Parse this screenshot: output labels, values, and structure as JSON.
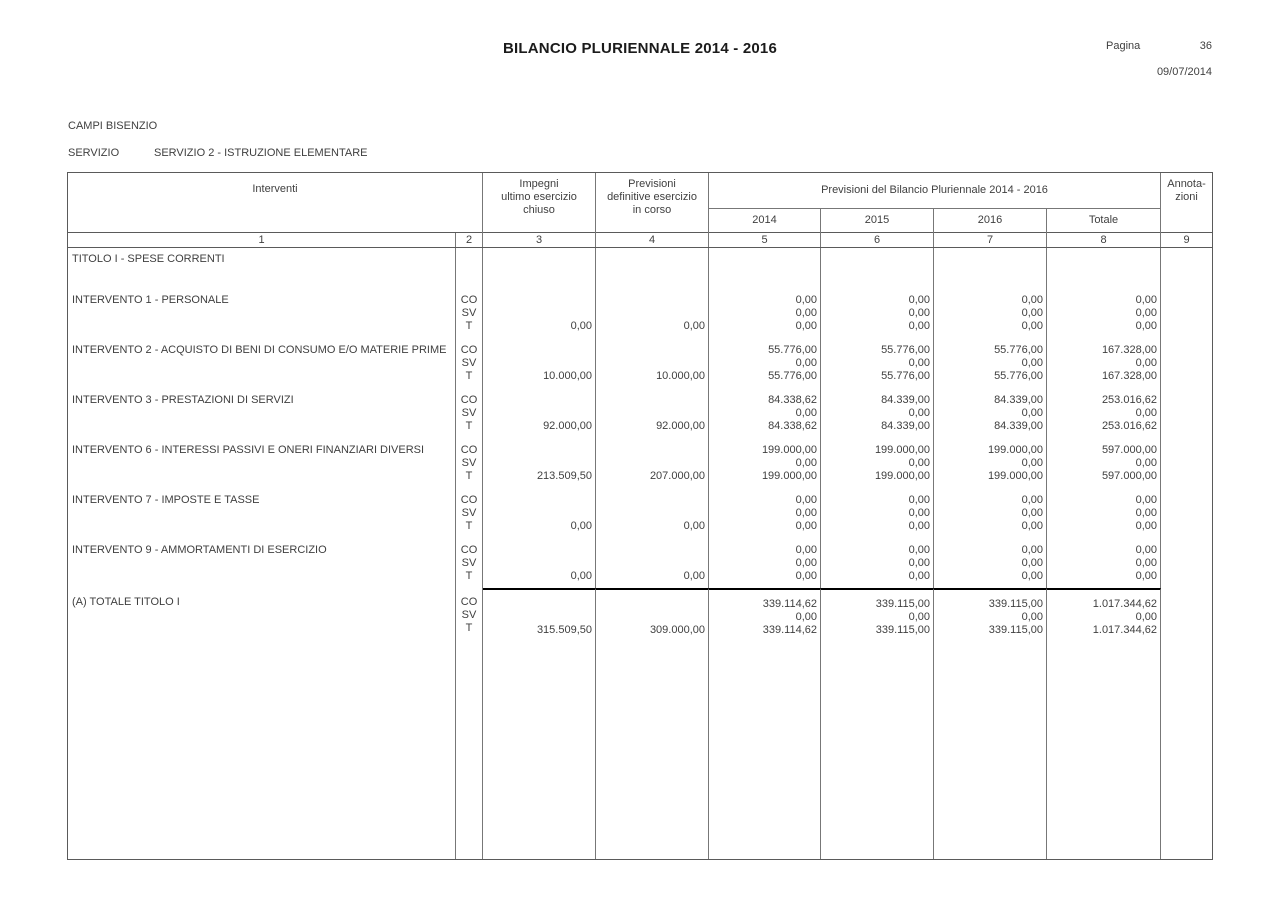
{
  "header": {
    "title": "BILANCIO PLURIENNALE 2014 - 2016",
    "pagina_label": "Pagina",
    "pagina_number": "36",
    "date": "09/07/2014"
  },
  "meta": {
    "entity": "CAMPI BISENZIO",
    "servizio_label": "SERVIZIO",
    "servizio_value": "SERVIZIO 2 - ISTRUZIONE ELEMENTARE"
  },
  "table": {
    "col_interventi": "Interventi",
    "col_impegni": "Impegni\nultimo esercizio\nchiuso",
    "col_previsioni_def": "Previsioni\ndefinitive esercizio\nin corso",
    "col_previsioni_plur": "Previsioni del Bilancio Pluriennale 2014 - 2016",
    "col_years": [
      "2014",
      "2015",
      "2016",
      "Totale"
    ],
    "col_annotazioni": "Annota-\nzioni",
    "column_numbers": [
      "1",
      "2",
      "3",
      "4",
      "5",
      "6",
      "7",
      "8",
      "9"
    ],
    "type_labels": [
      "CO",
      "SV",
      "T"
    ],
    "section_title": "TITOLO I - SPESE CORRENTI",
    "rows": [
      {
        "label": "INTERVENTO 1 - PERSONALE",
        "total": false,
        "co": [
          "0,00",
          "0,00",
          "0,00",
          "0,00"
        ],
        "sv": [
          "0,00",
          "0,00",
          "0,00",
          "0,00"
        ],
        "t": [
          "0,00",
          "0,00",
          "0,00",
          "0,00",
          "0,00",
          "0,00"
        ]
      },
      {
        "label": "INTERVENTO 2 - ACQUISTO DI BENI DI CONSUMO E/O MATERIE PRIME",
        "total": false,
        "co": [
          "55.776,00",
          "55.776,00",
          "55.776,00",
          "167.328,00"
        ],
        "sv": [
          "0,00",
          "0,00",
          "0,00",
          "0,00"
        ],
        "t": [
          "10.000,00",
          "10.000,00",
          "55.776,00",
          "55.776,00",
          "55.776,00",
          "167.328,00"
        ]
      },
      {
        "label": "INTERVENTO 3 - PRESTAZIONI DI SERVIZI",
        "total": false,
        "co": [
          "84.338,62",
          "84.339,00",
          "84.339,00",
          "253.016,62"
        ],
        "sv": [
          "0,00",
          "0,00",
          "0,00",
          "0,00"
        ],
        "t": [
          "92.000,00",
          "92.000,00",
          "84.338,62",
          "84.339,00",
          "84.339,00",
          "253.016,62"
        ]
      },
      {
        "label": "INTERVENTO 6 - INTERESSI PASSIVI E ONERI FINANZIARI DIVERSI",
        "total": false,
        "co": [
          "199.000,00",
          "199.000,00",
          "199.000,00",
          "597.000,00"
        ],
        "sv": [
          "0,00",
          "0,00",
          "0,00",
          "0,00"
        ],
        "t": [
          "213.509,50",
          "207.000,00",
          "199.000,00",
          "199.000,00",
          "199.000,00",
          "597.000,00"
        ]
      },
      {
        "label": "INTERVENTO 7 - IMPOSTE E TASSE",
        "total": false,
        "co": [
          "0,00",
          "0,00",
          "0,00",
          "0,00"
        ],
        "sv": [
          "0,00",
          "0,00",
          "0,00",
          "0,00"
        ],
        "t": [
          "0,00",
          "0,00",
          "0,00",
          "0,00",
          "0,00",
          "0,00"
        ]
      },
      {
        "label": "INTERVENTO 9 - AMMORTAMENTI DI ESERCIZIO",
        "total": false,
        "co": [
          "0,00",
          "0,00",
          "0,00",
          "0,00"
        ],
        "sv": [
          "0,00",
          "0,00",
          "0,00",
          "0,00"
        ],
        "t": [
          "0,00",
          "0,00",
          "0,00",
          "0,00",
          "0,00",
          "0,00"
        ]
      },
      {
        "label": "(A) TOTALE TITOLO I",
        "total": true,
        "co": [
          "339.114,62",
          "339.115,00",
          "339.115,00",
          "1.017.344,62"
        ],
        "sv": [
          "0,00",
          "0,00",
          "0,00",
          "0,00"
        ],
        "t": [
          "315.509,50",
          "309.000,00",
          "339.114,62",
          "339.115,00",
          "339.115,00",
          "1.017.344,62"
        ]
      }
    ]
  }
}
